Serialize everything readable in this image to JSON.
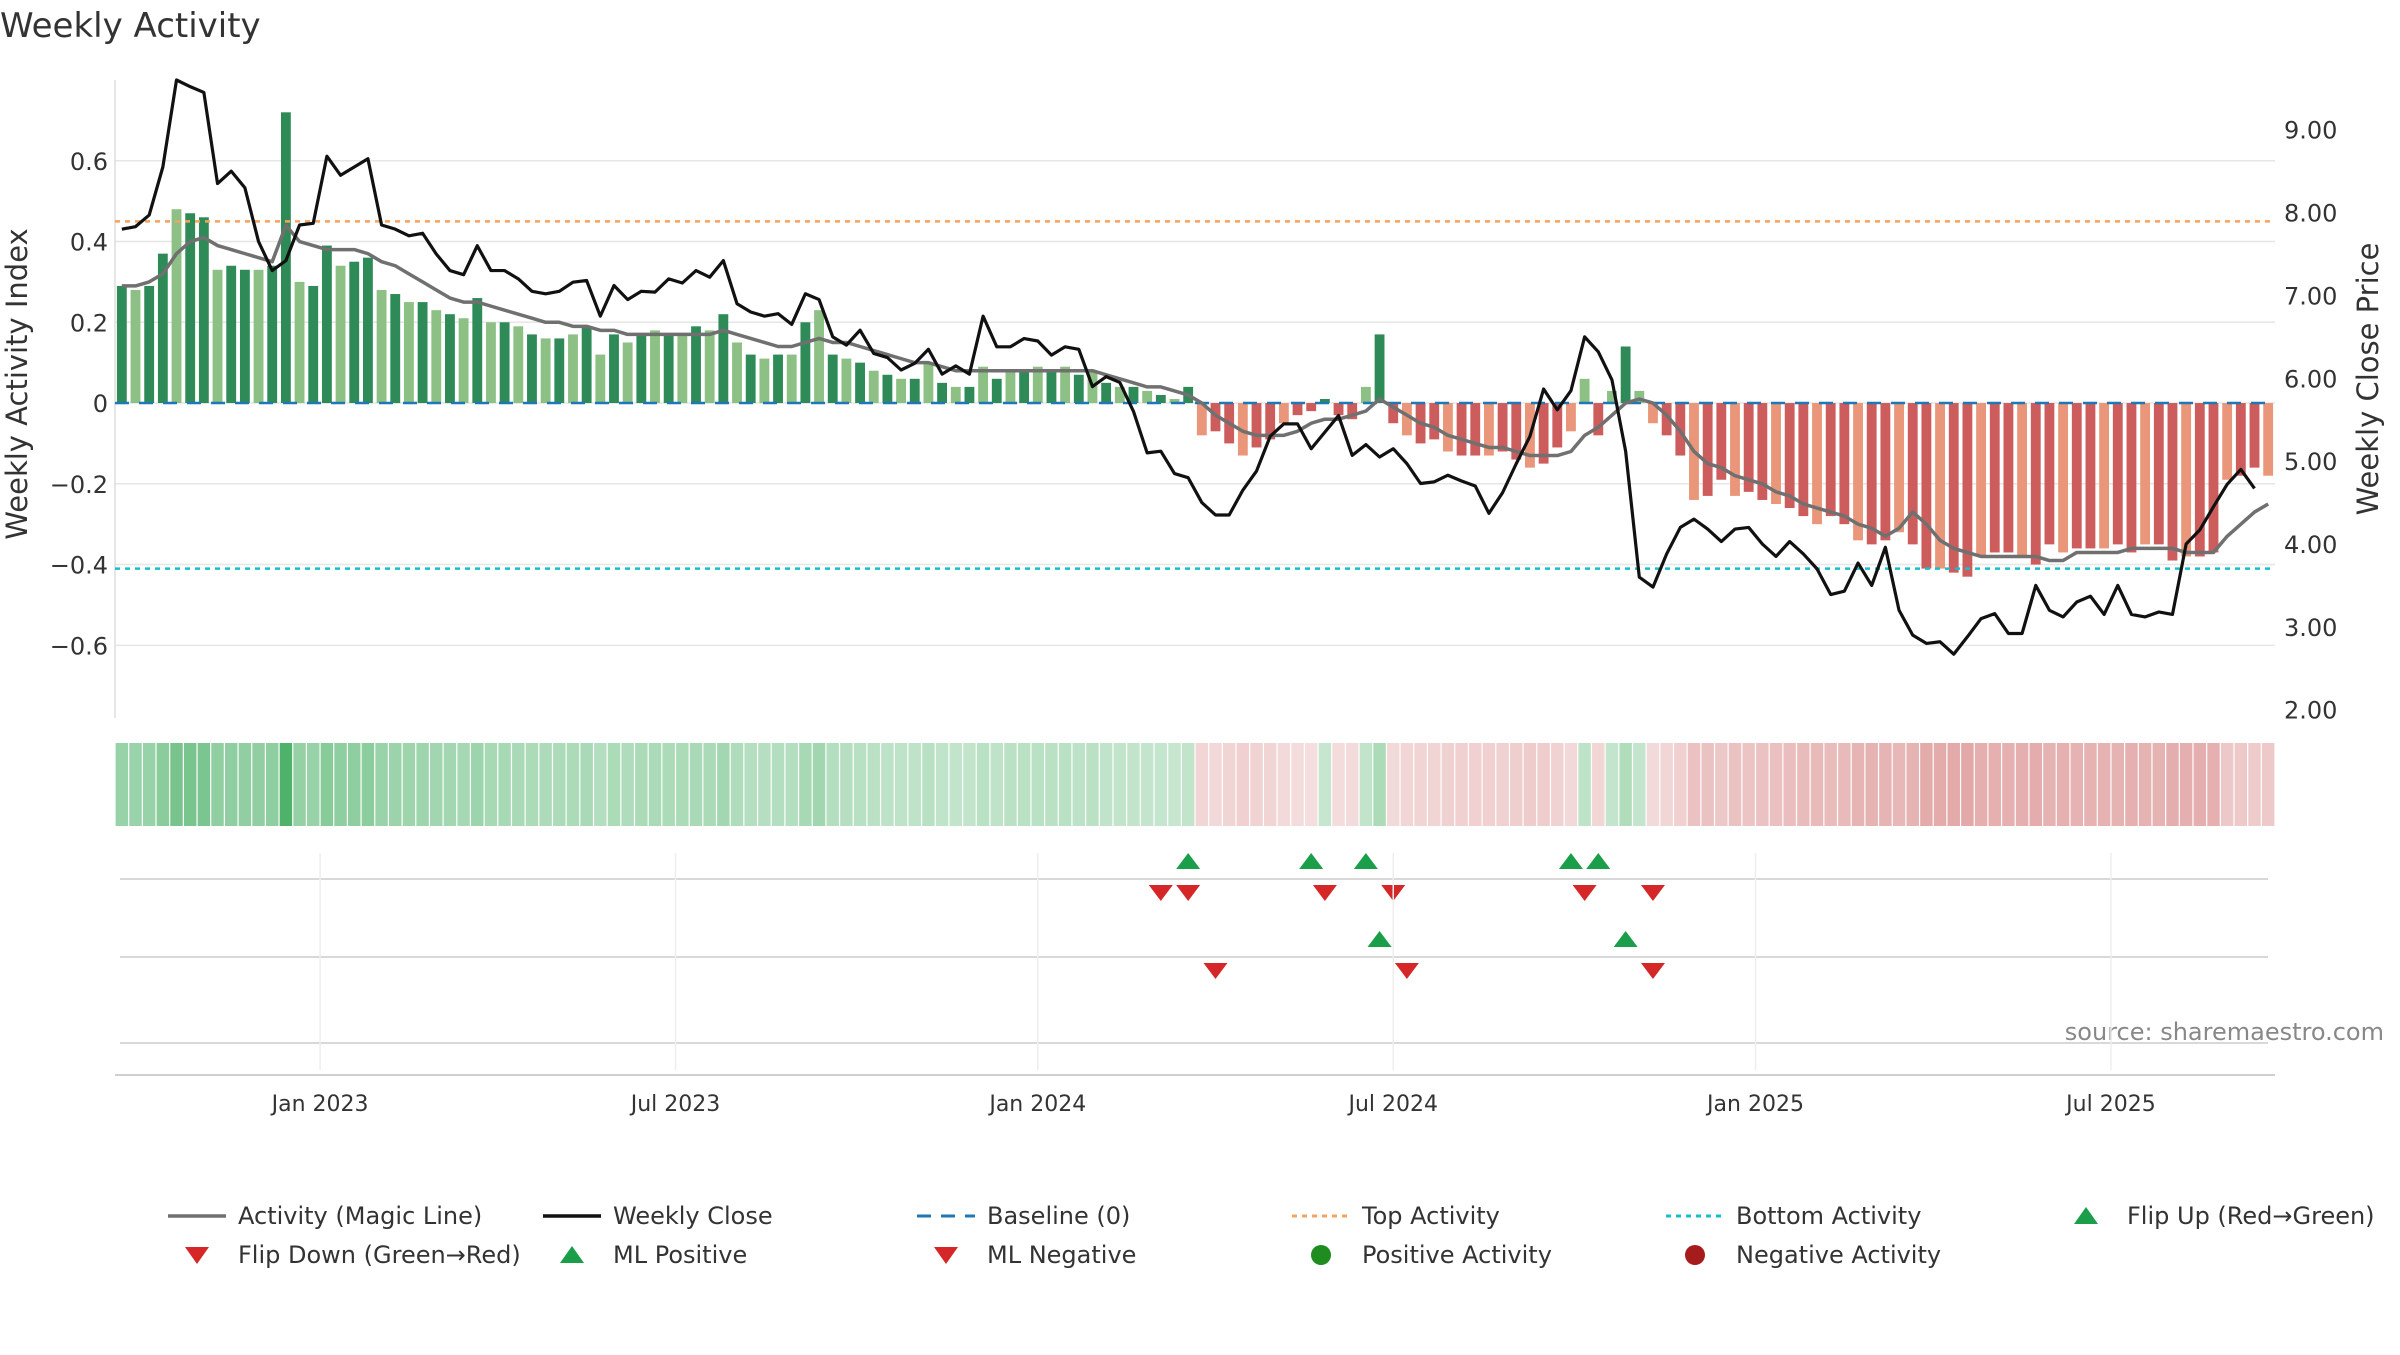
{
  "title": "Weekly Activity",
  "source_note": "source: sharemaestro.com",
  "colors": {
    "bar_pos_dark": "#2e8b57",
    "bar_pos_light": "#8cc084",
    "bar_neg_dark": "#cd5c5c",
    "bar_neg_light": "#e9967a",
    "magic_line": "#707070",
    "close_line": "#111111",
    "baseline": "#1f77b4",
    "top_line": "#f4a460",
    "bottom_line": "#17becf",
    "flip_up": "#1a9e4a",
    "flip_down": "#d62728",
    "grid": "#e6e6e6"
  },
  "chart_data": {
    "type": "bar",
    "title": "Weekly Activity",
    "xlabel": "",
    "ylabel": "Weekly Activity Index",
    "y2label": "Weekly Close Price",
    "ylim": [
      -0.78,
      0.8
    ],
    "y2lim": [
      1.9,
      9.6
    ],
    "yticks": [
      0.6,
      0.4,
      0.2,
      0,
      -0.2,
      -0.4,
      -0.6
    ],
    "ytick_labels": [
      "0.6",
      "0.4",
      "0.2",
      "0",
      "−0.2",
      "−0.4",
      "−0.6"
    ],
    "y2ticks": [
      9,
      8,
      7,
      6,
      5,
      4,
      3,
      2
    ],
    "y2tick_labels": [
      "9.00",
      "8.00",
      "7.00",
      "6.00",
      "5.00",
      "4.00",
      "3.00",
      "2.00"
    ],
    "x_start_week": 0,
    "x_end_week": 157,
    "xticks": [
      {
        "label": "Jan 2023",
        "week": 14.5
      },
      {
        "label": "Jul 2023",
        "week": 40.5
      },
      {
        "label": "Jan 2024",
        "week": 67
      },
      {
        "label": "Jul 2024",
        "week": 93
      },
      {
        "label": "Jan 2025",
        "week": 119.5
      },
      {
        "label": "Jul 2025",
        "week": 145.5
      }
    ],
    "top_activity": 0.45,
    "bottom_activity": -0.41,
    "baseline": 0,
    "activity": [
      0.29,
      0.28,
      0.29,
      0.37,
      0.48,
      0.47,
      0.46,
      0.33,
      0.34,
      0.33,
      0.33,
      0.34,
      0.72,
      0.3,
      0.29,
      0.39,
      0.34,
      0.35,
      0.36,
      0.28,
      0.27,
      0.25,
      0.25,
      0.23,
      0.22,
      0.21,
      0.26,
      0.2,
      0.2,
      0.19,
      0.17,
      0.16,
      0.16,
      0.17,
      0.19,
      0.12,
      0.17,
      0.15,
      0.17,
      0.18,
      0.17,
      0.17,
      0.19,
      0.18,
      0.22,
      0.15,
      0.12,
      0.11,
      0.12,
      0.12,
      0.2,
      0.23,
      0.12,
      0.11,
      0.1,
      0.08,
      0.07,
      0.06,
      0.06,
      0.1,
      0.05,
      0.04,
      0.04,
      0.09,
      0.06,
      0.08,
      0.08,
      0.09,
      0.08,
      0.09,
      0.07,
      0.08,
      0.05,
      0.04,
      0.04,
      0.03,
      0.02,
      0.01,
      0.04,
      -0.08,
      -0.07,
      -0.1,
      -0.13,
      -0.11,
      -0.09,
      -0.05,
      -0.03,
      -0.02,
      0.01,
      -0.03,
      -0.04,
      0.04,
      0.17,
      -0.05,
      -0.08,
      -0.1,
      -0.09,
      -0.12,
      -0.13,
      -0.13,
      -0.13,
      -0.12,
      -0.14,
      -0.16,
      -0.15,
      -0.11,
      -0.07,
      0.06,
      -0.08,
      0.03,
      0.14,
      0.03,
      -0.05,
      -0.08,
      -0.13,
      -0.24,
      -0.23,
      -0.19,
      -0.23,
      -0.22,
      -0.24,
      -0.25,
      -0.26,
      -0.28,
      -0.3,
      -0.28,
      -0.3,
      -0.34,
      -0.35,
      -0.34,
      -0.32,
      -0.35,
      -0.41,
      -0.41,
      -0.42,
      -0.43,
      -0.38,
      -0.37,
      -0.37,
      -0.38,
      -0.4,
      -0.35,
      -0.37,
      -0.36,
      -0.36,
      -0.36,
      -0.35,
      -0.37,
      -0.35,
      -0.35,
      -0.39,
      -0.38,
      -0.38,
      -0.37,
      -0.19,
      -0.18,
      -0.16,
      -0.18
    ],
    "series": [
      {
        "name": "Activity (Magic Line)",
        "values": [
          0.29,
          0.29,
          0.3,
          0.32,
          0.37,
          0.4,
          0.41,
          0.39,
          0.38,
          0.37,
          0.36,
          0.35,
          0.44,
          0.4,
          0.39,
          0.38,
          0.38,
          0.38,
          0.37,
          0.35,
          0.34,
          0.32,
          0.3,
          0.28,
          0.26,
          0.25,
          0.25,
          0.24,
          0.23,
          0.22,
          0.21,
          0.2,
          0.2,
          0.19,
          0.19,
          0.18,
          0.18,
          0.17,
          0.17,
          0.17,
          0.17,
          0.17,
          0.17,
          0.17,
          0.18,
          0.17,
          0.16,
          0.15,
          0.14,
          0.14,
          0.15,
          0.16,
          0.15,
          0.15,
          0.14,
          0.13,
          0.12,
          0.11,
          0.1,
          0.1,
          0.09,
          0.08,
          0.08,
          0.08,
          0.08,
          0.08,
          0.08,
          0.08,
          0.08,
          0.08,
          0.08,
          0.08,
          0.07,
          0.06,
          0.05,
          0.04,
          0.04,
          0.03,
          0.02,
          0.0,
          -0.03,
          -0.05,
          -0.07,
          -0.08,
          -0.08,
          -0.08,
          -0.07,
          -0.05,
          -0.04,
          -0.04,
          -0.03,
          -0.02,
          0.01,
          -0.01,
          -0.03,
          -0.05,
          -0.06,
          -0.08,
          -0.09,
          -0.1,
          -0.11,
          -0.11,
          -0.12,
          -0.13,
          -0.13,
          -0.13,
          -0.12,
          -0.08,
          -0.06,
          -0.03,
          0.0,
          0.01,
          0.0,
          -0.03,
          -0.07,
          -0.12,
          -0.15,
          -0.16,
          -0.18,
          -0.19,
          -0.2,
          -0.22,
          -0.23,
          -0.25,
          -0.26,
          -0.27,
          -0.28,
          -0.3,
          -0.31,
          -0.33,
          -0.31,
          -0.27,
          -0.3,
          -0.34,
          -0.36,
          -0.37,
          -0.38,
          -0.38,
          -0.38,
          -0.38,
          -0.38,
          -0.39,
          -0.39,
          -0.37,
          -0.37,
          -0.37,
          -0.37,
          -0.36,
          -0.36,
          -0.36,
          -0.36,
          -0.37,
          -0.37,
          -0.37,
          -0.33,
          -0.3,
          -0.27,
          -0.25
        ]
      },
      {
        "name": "Weekly Close",
        "values": [
          7.8,
          7.83,
          7.97,
          8.55,
          9.6,
          9.52,
          9.45,
          8.35,
          8.5,
          8.3,
          7.65,
          7.3,
          7.42,
          7.85,
          7.87,
          8.68,
          8.45,
          8.55,
          8.65,
          7.85,
          7.8,
          7.72,
          7.75,
          7.5,
          7.3,
          7.25,
          7.6,
          7.3,
          7.3,
          7.2,
          7.05,
          7.02,
          7.05,
          7.16,
          7.18,
          6.75,
          7.12,
          6.95,
          7.05,
          7.04,
          7.2,
          7.15,
          7.3,
          7.22,
          7.42,
          6.9,
          6.8,
          6.75,
          6.78,
          6.65,
          7.02,
          6.95,
          6.5,
          6.4,
          6.58,
          6.3,
          6.25,
          6.1,
          6.18,
          6.35,
          6.05,
          6.15,
          6.05,
          6.75,
          6.38,
          6.38,
          6.48,
          6.45,
          6.28,
          6.38,
          6.35,
          5.9,
          6.02,
          5.95,
          5.6,
          5.1,
          5.12,
          4.85,
          4.8,
          4.5,
          4.35,
          4.35,
          4.65,
          4.88,
          5.3,
          5.45,
          5.45,
          5.15,
          5.35,
          5.55,
          5.07,
          5.2,
          5.05,
          5.15,
          4.97,
          4.73,
          4.75,
          4.83,
          4.76,
          4.7,
          4.37,
          4.62,
          4.97,
          5.3,
          5.87,
          5.62,
          5.85,
          6.5,
          6.32,
          5.98,
          5.12,
          3.6,
          3.48,
          3.88,
          4.2,
          4.3,
          4.18,
          4.03,
          4.18,
          4.2,
          4.0,
          3.85,
          4.03,
          3.88,
          3.7,
          3.39,
          3.43,
          3.77,
          3.5,
          3.96,
          3.2,
          2.9,
          2.8,
          2.82,
          2.67,
          2.88,
          3.1,
          3.16,
          2.92,
          2.92,
          3.5,
          3.2,
          3.12,
          3.3,
          3.37,
          3.15,
          3.5,
          3.15,
          3.12,
          3.18,
          3.15,
          4.0,
          4.17,
          4.45,
          4.72,
          4.9,
          4.67
        ]
      }
    ],
    "heatmap_row": {
      "type": "heatmap",
      "description": "weekly activity strip, shade proportional to activity",
      "values_from": "activity"
    },
    "signal_rows": [
      {
        "name": "flip signals",
        "up_weeks": [
          78,
          87,
          91,
          106,
          108
        ],
        "down_weeks": [
          76,
          78,
          88,
          93,
          107,
          112
        ]
      },
      {
        "name": "ML signals",
        "up_weeks": [
          92,
          110
        ],
        "down_weeks": [
          80,
          94,
          112
        ]
      },
      {
        "name": "activity signals",
        "up_weeks": [],
        "down_weeks": []
      }
    ]
  },
  "legend": {
    "row1": [
      "Activity (Magic Line)",
      "Weekly Close",
      "Baseline (0)",
      "Top Activity",
      "Bottom Activity",
      "Flip Up (Red→Green)"
    ],
    "row2": [
      "Flip Down (Green→Red)",
      "ML Positive",
      "ML Negative",
      "Positive Activity",
      "Negative Activity"
    ]
  }
}
